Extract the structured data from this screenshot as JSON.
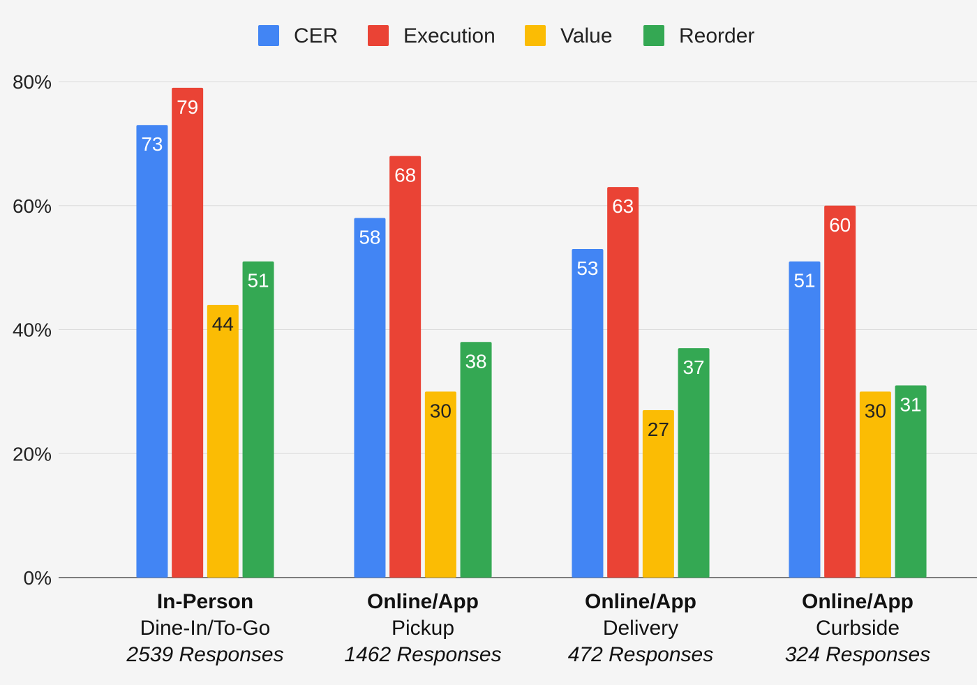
{
  "chart_data": {
    "type": "bar",
    "title": "",
    "xlabel": "",
    "ylabel": "",
    "ylim": [
      0,
      80
    ],
    "y_ticks": [
      "0%",
      "20%",
      "40%",
      "60%",
      "80%"
    ],
    "y_tick_values": [
      0,
      20,
      40,
      60,
      80
    ],
    "grid": true,
    "legend_position": "top",
    "categories": [
      {
        "line1": "In-Person",
        "line2": "Dine-In/To-Go",
        "line3": "2539 Responses"
      },
      {
        "line1": "Online/App",
        "line2": "Pickup",
        "line3": "1462 Responses"
      },
      {
        "line1": "Online/App",
        "line2": "Delivery",
        "line3": "472 Responses"
      },
      {
        "line1": "Online/App",
        "line2": "Curbside",
        "line3": "324 Responses"
      }
    ],
    "series": [
      {
        "name": "CER",
        "color": "#4285f4",
        "label_color": "#ffffff",
        "values": [
          73,
          58,
          53,
          51
        ]
      },
      {
        "name": "Execution",
        "color": "#ea4335",
        "label_color": "#ffffff",
        "values": [
          79,
          68,
          63,
          60
        ]
      },
      {
        "name": "Value",
        "color": "#fbbc04",
        "label_color": "#222222",
        "values": [
          44,
          30,
          27,
          30
        ]
      },
      {
        "name": "Reorder",
        "color": "#34a853",
        "label_color": "#ffffff",
        "values": [
          51,
          38,
          37,
          31
        ]
      }
    ]
  }
}
